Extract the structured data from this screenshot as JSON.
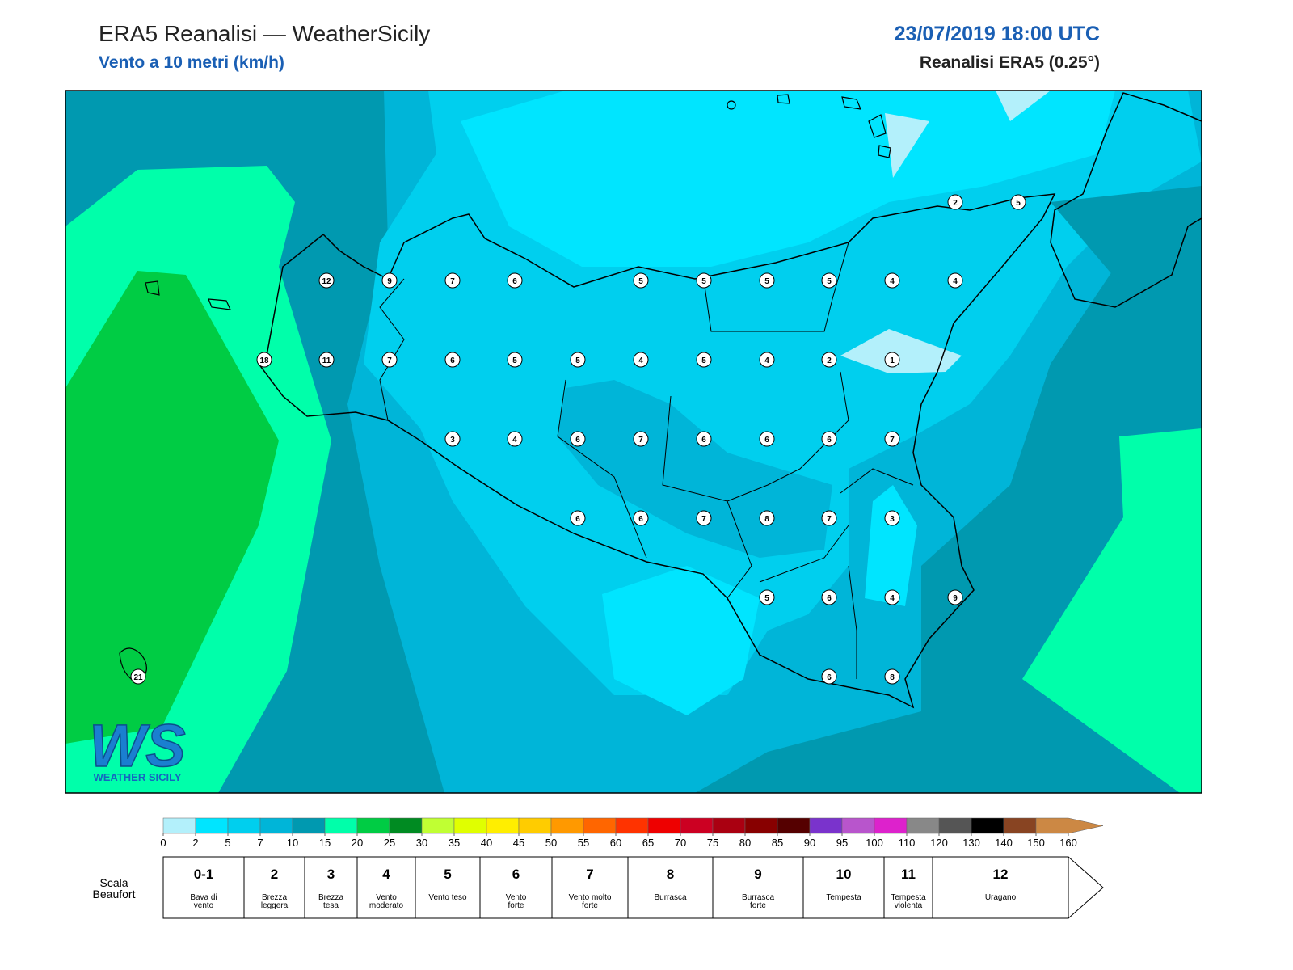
{
  "header": {
    "title": "ERA5 Reanalisi — WeatherSicily",
    "subtitle": "Vento a 10 metri (km/h)",
    "datetime": "23/07/2019 18:00 UTC",
    "source": "Reanalisi ERA5 (0.25°)"
  },
  "stations": {
    "values": [
      2,
      5,
      12,
      9,
      7,
      6,
      5,
      5,
      5,
      5,
      4,
      4,
      18,
      11,
      7,
      6,
      5,
      5,
      4,
      5,
      4,
      2,
      1,
      3,
      4,
      6,
      7,
      6,
      6,
      6,
      7,
      6,
      6,
      7,
      8,
      7,
      3,
      5,
      6,
      4,
      9,
      6,
      8,
      21
    ]
  },
  "colorbar": {
    "ticks": [
      0,
      2,
      5,
      7,
      10,
      15,
      20,
      25,
      30,
      35,
      40,
      45,
      50,
      55,
      60,
      65,
      70,
      75,
      80,
      85,
      90,
      95,
      100,
      110,
      120,
      130,
      140,
      150,
      160
    ],
    "colors": [
      "#b3f0fb",
      "#00e5ff",
      "#00cfee",
      "#00b5d8",
      "#0099b0",
      "#00ffaa",
      "#00cc44",
      "#008b22",
      "#c0ff33",
      "#e0ff00",
      "#ffee00",
      "#ffcc00",
      "#ff9900",
      "#ff6600",
      "#ff3300",
      "#ee0000",
      "#cc0022",
      "#aa0011",
      "#880000",
      "#550000",
      "#7a33cc",
      "#b855cc",
      "#dd22cc",
      "#888888",
      "#555555",
      "#000000",
      "#884422",
      "#cc8844"
    ]
  },
  "beaufort": {
    "label": "Scala Beaufort",
    "levels": [
      {
        "force": "0-1",
        "description": "Bava di vento"
      },
      {
        "force": "2",
        "description": "Brezza leggera"
      },
      {
        "force": "3",
        "description": "Brezza tesa"
      },
      {
        "force": "4",
        "description": "Vento moderato"
      },
      {
        "force": "5",
        "description": "Vento teso"
      },
      {
        "force": "6",
        "description": "Vento forte"
      },
      {
        "force": "7",
        "description": "Vento molto forte"
      },
      {
        "force": "8",
        "description": "Burrasca"
      },
      {
        "force": "9",
        "description": "Burrasca forte"
      },
      {
        "force": "10",
        "description": "Tempesta"
      },
      {
        "force": "11",
        "description": "Tempesta violenta"
      },
      {
        "force": "12",
        "description": "Uragano"
      }
    ]
  },
  "logo": {
    "mark": "WS",
    "text": "WEATHER SICILY"
  }
}
